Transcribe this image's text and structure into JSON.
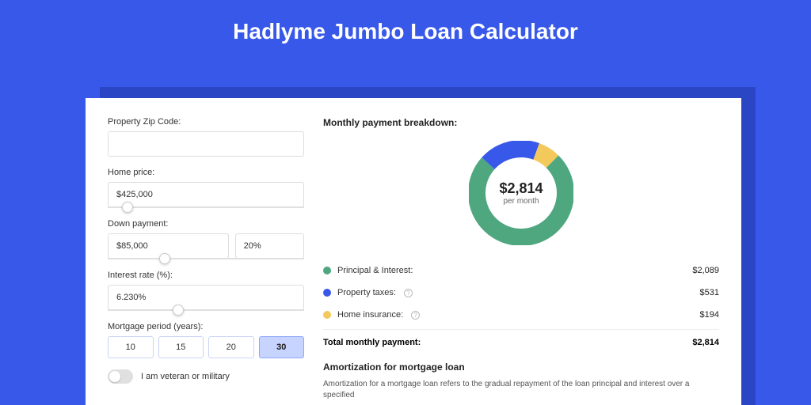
{
  "page": {
    "title": "Hadlyme Jumbo Loan Calculator"
  },
  "colors": {
    "page_bg": "#3858e9",
    "shadow_bg": "#2a46c4",
    "card_bg": "#ffffff",
    "pi": "#4fa77f",
    "tax": "#3858e9",
    "ins": "#f3c95b"
  },
  "form": {
    "zip": {
      "label": "Property Zip Code:",
      "value": ""
    },
    "price": {
      "label": "Home price:",
      "value": "$425,000",
      "slider_pct": 10
    },
    "down": {
      "label": "Down payment:",
      "value": "$85,000",
      "pct": "20%",
      "slider_pct": 29
    },
    "rate": {
      "label": "Interest rate (%):",
      "value": "6.230%",
      "slider_pct": 36
    },
    "period": {
      "label": "Mortgage period (years):",
      "options": [
        "10",
        "15",
        "20",
        "30"
      ],
      "selected": "30"
    },
    "military": {
      "label": "I am veteran or military",
      "on": false
    }
  },
  "breakdown": {
    "title": "Monthly payment breakdown:",
    "center_amount": "$2,814",
    "center_sub": "per month",
    "items": [
      {
        "label": "Principal & Interest:",
        "value": "$2,089",
        "color": "#4fa77f",
        "info": false,
        "num": 2089
      },
      {
        "label": "Property taxes:",
        "value": "$531",
        "color": "#3858e9",
        "info": true,
        "num": 531
      },
      {
        "label": "Home insurance:",
        "value": "$194",
        "color": "#f3c95b",
        "info": true,
        "num": 194
      }
    ],
    "total": {
      "label": "Total monthly payment:",
      "value": "$2,814"
    },
    "donut": {
      "radius": 56,
      "stroke_width": 22,
      "segments": [
        {
          "color": "#f3c95b",
          "pct": 6.9
        },
        {
          "color": "#4fa77f",
          "pct": 74.23
        },
        {
          "color": "#3858e9",
          "pct": 18.87
        }
      ],
      "start_angle_deg": -70
    }
  },
  "amort": {
    "title": "Amortization for mortgage loan",
    "text": "Amortization for a mortgage loan refers to the gradual repayment of the loan principal and interest over a specified"
  }
}
